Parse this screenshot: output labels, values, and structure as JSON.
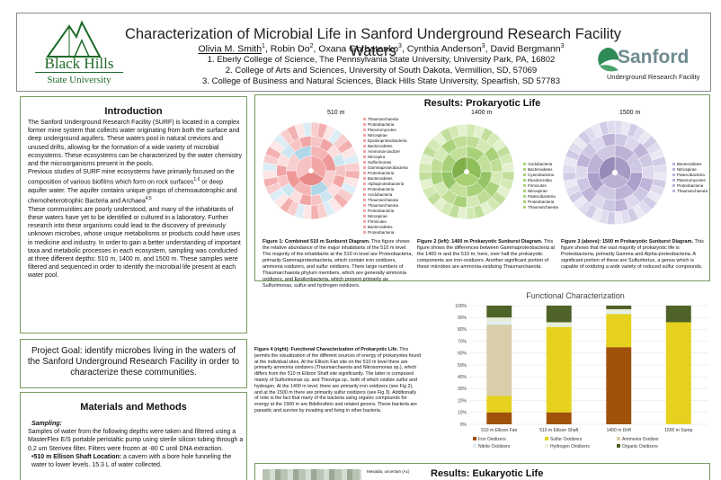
{
  "header": {
    "title": "Characterization of Microbial Life in Sanford Underground Research Facility Waters",
    "authors": [
      {
        "name": "Olivia M. Smith",
        "sup": "1"
      },
      {
        "name": "Robin Do",
        "sup": "2"
      },
      {
        "name": "Oxana Gorbatenko",
        "sup": "3"
      },
      {
        "name": "Cynthia Anderson",
        "sup": "3"
      },
      {
        "name": "David Bergmann",
        "sup": "3"
      }
    ],
    "affiliations": [
      "1. Eberly College of Science, The Pennsylvania State University, University Park, PA, 16802",
      "2. College of Arts and Sciences, University of South Dakota, Vermillion, SD, 57069",
      "3. College of Business and Natural Sciences, Black Hills State University, Spearfish, SD 57783"
    ],
    "logo_left": {
      "line1": "Black Hills",
      "line2": "State University",
      "color": "#1e6b2a"
    },
    "logo_right": {
      "word": "Sanford",
      "sub": "Underground Research Facility",
      "color": "#6f8b8f"
    }
  },
  "intro": {
    "title": "Introduction",
    "p1": "The Sanford Underground Research Facility (SURF) is located in a complex former mine system that collects water originating from both the surface and deep underground aquifers. These waters pool in natural crevices and unused drifts, allowing for the formation of a wide variety of microbial ecosystems. These ecosystems can be characterized by the water chemistry and the microorganisms present in the pools.",
    "p2a": "Previous studies of SURF mine ecosystems have primarily focused on the composition of various biofilms which form on rock surfaces",
    "p2a_sup": "1,6",
    "p2b": " or deep aquifer water. The aquifer contains unique groups of chemoautotrophic and chemoheterotrophic Bacteria and Archaea",
    "p2b_sup": "4,5",
    "p3": "These communities are poorly understood, and many of the inhabitants of these waters have yet to be identified or cultured in a laboratory. Further research into these organisms could lead to the discovery of previously unknown microbes, whose unique metabolisms or products could have uses in medicine and industry. In order to gain a better understanding of important taxa and metabolic processes in each ecosystem, sampling was conducted at three different depths: 510 m, 1400 m, and 1500 m. These samples were filtered and sequenced in order to identify the microbial life present at each water pool."
  },
  "goal": {
    "text": "Project Goal: identify microbes living in the waters of the Sanford Underground Research Facility in order to characterize these communities."
  },
  "methods": {
    "title": "Materials and Methods",
    "sub": "Sampling:",
    "p1": "Samples of water from the following depths were taken and filtered using a MasterFlex E/S portable peristaltic pump using sterile silicon tubing through a 0.2 um Sterivex filter. Filters were frozen at -80 C until DNA extraction.",
    "bullet": "•510 m Ellison Shaft Location:",
    "bullet_rest": " a cavern with a bore hole funneling the water to lower levels. 15.3 L of water collected."
  },
  "results": {
    "title": "Results: Prokaryotic Life",
    "depth_labels": [
      "510 m",
      "1400 m",
      "1500 m"
    ],
    "sunburst_510_legend": [
      "Thaumarchaeota",
      "Proteobacteria",
      "Planctomycetes",
      "Nitrospirae",
      "Epsilonproteobacteria",
      "Bacteroidetes",
      "Ammonia-oxidizer",
      "Nitrospira",
      "Sulfurimonas",
      "Gammaproteobacteria",
      "Proteobacteria",
      "Bacteroidetes",
      "Alphaproteobacteria",
      "Proteobacteria",
      "Acidobacteria",
      "Thaumarchaeota",
      "Thaumarchaeota",
      "Proteobacteria",
      "Nitrospirae",
      "Firmicutes",
      "Bacteroidetes",
      "Proteobacteria"
    ],
    "sunburst_1400_legend": [
      "Acidobacteria",
      "Bacteroidetes",
      "Cyanobacteria",
      "Elusimicrobia",
      "Firmicutes",
      "Nitrospirae",
      "Patescibacteria",
      "Proteobacteria",
      "Thaumarchaeota"
    ],
    "sunburst_1500_legend": [
      "Bacteroidetes",
      "Nitrospirae",
      "Patescibacteria",
      "Planctomycetes",
      "Proteobacteria",
      "Thaumarchaeota"
    ],
    "cap1_bold": "Figure 1: Combined 510 m Sunburst Diagram.",
    "cap1": " This figure shows the relative abundance of the major inhabitants of the 510 m level. The majority of the inhabitants at the 510 m level are Proteobacteria, primarily Gammaproteobacteria, which contain iron oxidizers, ammonia oxidizers, and sulfur oxidizers. There large numbers of Thaumarchaeota phylum members, which are generally ammonia oxidizers, and Epsilonbacteria, which present primarily as Sulfurimonas, sulfur and hydrogen oxidizers.",
    "cap2_bold": "Figure 2 (left): 1400 m Prokaryotic Sunburst Diagram.",
    "cap2": " This figure shows the differences between Gammaproteobacteria at the 1400 m and the 510 m; here, over half the prokaryotic components are iron-oxidizers. Another significant portion of these microbes are ammonia-oxidizing Thaumarchaeota.",
    "cap3_bold": "Figure 3 (above): 1500 m Prokaryotic Sunburst Diagram.",
    "cap3": " This figure shows that the vast majority of prokaryotic life is Proteobacteria, primarily Gamma and Alpha-proteobacteria. A significant portion of these are Sulfuritortus, a genus which is capable of oxidizing a wide variety of reduced sulfur compounds.",
    "cap4_bold": "Figure 4 (right): Functional Characterization of Prokaryotic Life.",
    "cap4": " This permits the visualization of the different sources of energy of prokaryotes found at the individual sites. At the Ellison Fan site on the 510 m level there are primarily ammonia oxidizers (Thaumarchaeota and Nitrosomonas sp.), which differs from the 510 m Ellison Shaft site significantly. The latter is composed mainly of Sulfurimonas sp. and Thiovirga sp., both of which oxidize sulfur and hydrogen. At the 1400 m level, there are primarily iron oxidizers (see Fig 2), and at the 1500 m there are primarily sulfur oxidizers (see Fig 3). Additionally of note is the fact that many of the bacteria using organic compounds for energy at the 1500 m are Bdellovibrio and related genera. These bacteria are parasitic and survive by invading and living in other bacteria."
  },
  "chart_data": {
    "type": "bar",
    "stacked": true,
    "title": "Functional Characterization",
    "categories": [
      "510 m Ellison Fan",
      "510 m Ellison Shaft",
      "1400 m Drift",
      "1500 m Sump"
    ],
    "series": [
      {
        "name": "Iron Oxidizers",
        "color": "#a0520a",
        "values": [
          10,
          10,
          65,
          0
        ]
      },
      {
        "name": "Sulfur Oxidizers",
        "color": "#e6d21e",
        "values": [
          14,
          72,
          28,
          86
        ]
      },
      {
        "name": "Ammonia Oxidizer",
        "color": "#d8ceaa",
        "values": [
          60,
          0,
          0,
          0
        ]
      },
      {
        "name": "Nitrite Oxidizers",
        "color": "#dff0f6",
        "values": [
          2,
          0,
          2,
          0
        ]
      },
      {
        "name": "Hydrogen Oxidizers",
        "color": "#e8edd9",
        "values": [
          4,
          4,
          2,
          0
        ]
      },
      {
        "name": "Organic Oxidizers",
        "color": "#4f6228",
        "values": [
          10,
          14,
          3,
          14
        ]
      }
    ],
    "y_ticks": [
      "0%",
      "10%",
      "20%",
      "30%",
      "40%",
      "50%",
      "60%",
      "70%",
      "80%",
      "90%",
      "100%"
    ],
    "ylim": [
      0,
      100
    ],
    "legend": "bottom"
  },
  "eukaryotic": {
    "title": "Results: Eukaryotic Life",
    "legend_item": "Mesalda, uncertain (Ac)"
  }
}
